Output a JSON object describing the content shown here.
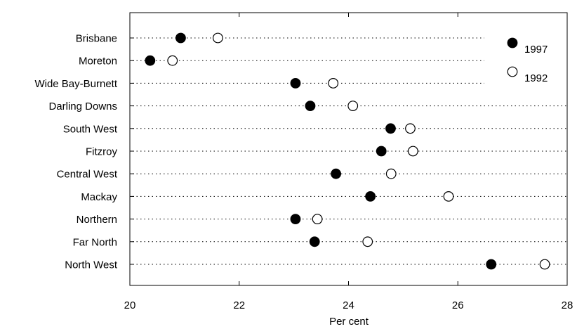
{
  "chart_data": {
    "type": "scatter",
    "title": "",
    "xlabel": "Per cent",
    "ylabel": "",
    "xlim": [
      20,
      28
    ],
    "xticks": [
      20,
      22,
      24,
      26,
      28
    ],
    "grid": "horizontal dotted",
    "legend_position": "top-right",
    "categories": [
      "Brisbane",
      "Moreton",
      "Wide Bay-Burnett",
      "Darling Downs",
      "South West",
      "Fitzroy",
      "Central West",
      "Mackay",
      "Northern",
      "Far North",
      "North West"
    ],
    "series": [
      {
        "name": "1997",
        "marker": "filled-circle",
        "values": [
          20.93,
          20.37,
          23.03,
          23.3,
          24.77,
          24.6,
          23.77,
          24.4,
          23.03,
          23.38,
          26.61
        ]
      },
      {
        "name": "1992",
        "marker": "open-circle",
        "values": [
          21.61,
          20.78,
          23.72,
          24.08,
          25.13,
          25.18,
          24.78,
          25.83,
          23.43,
          24.35,
          27.59
        ]
      }
    ]
  }
}
